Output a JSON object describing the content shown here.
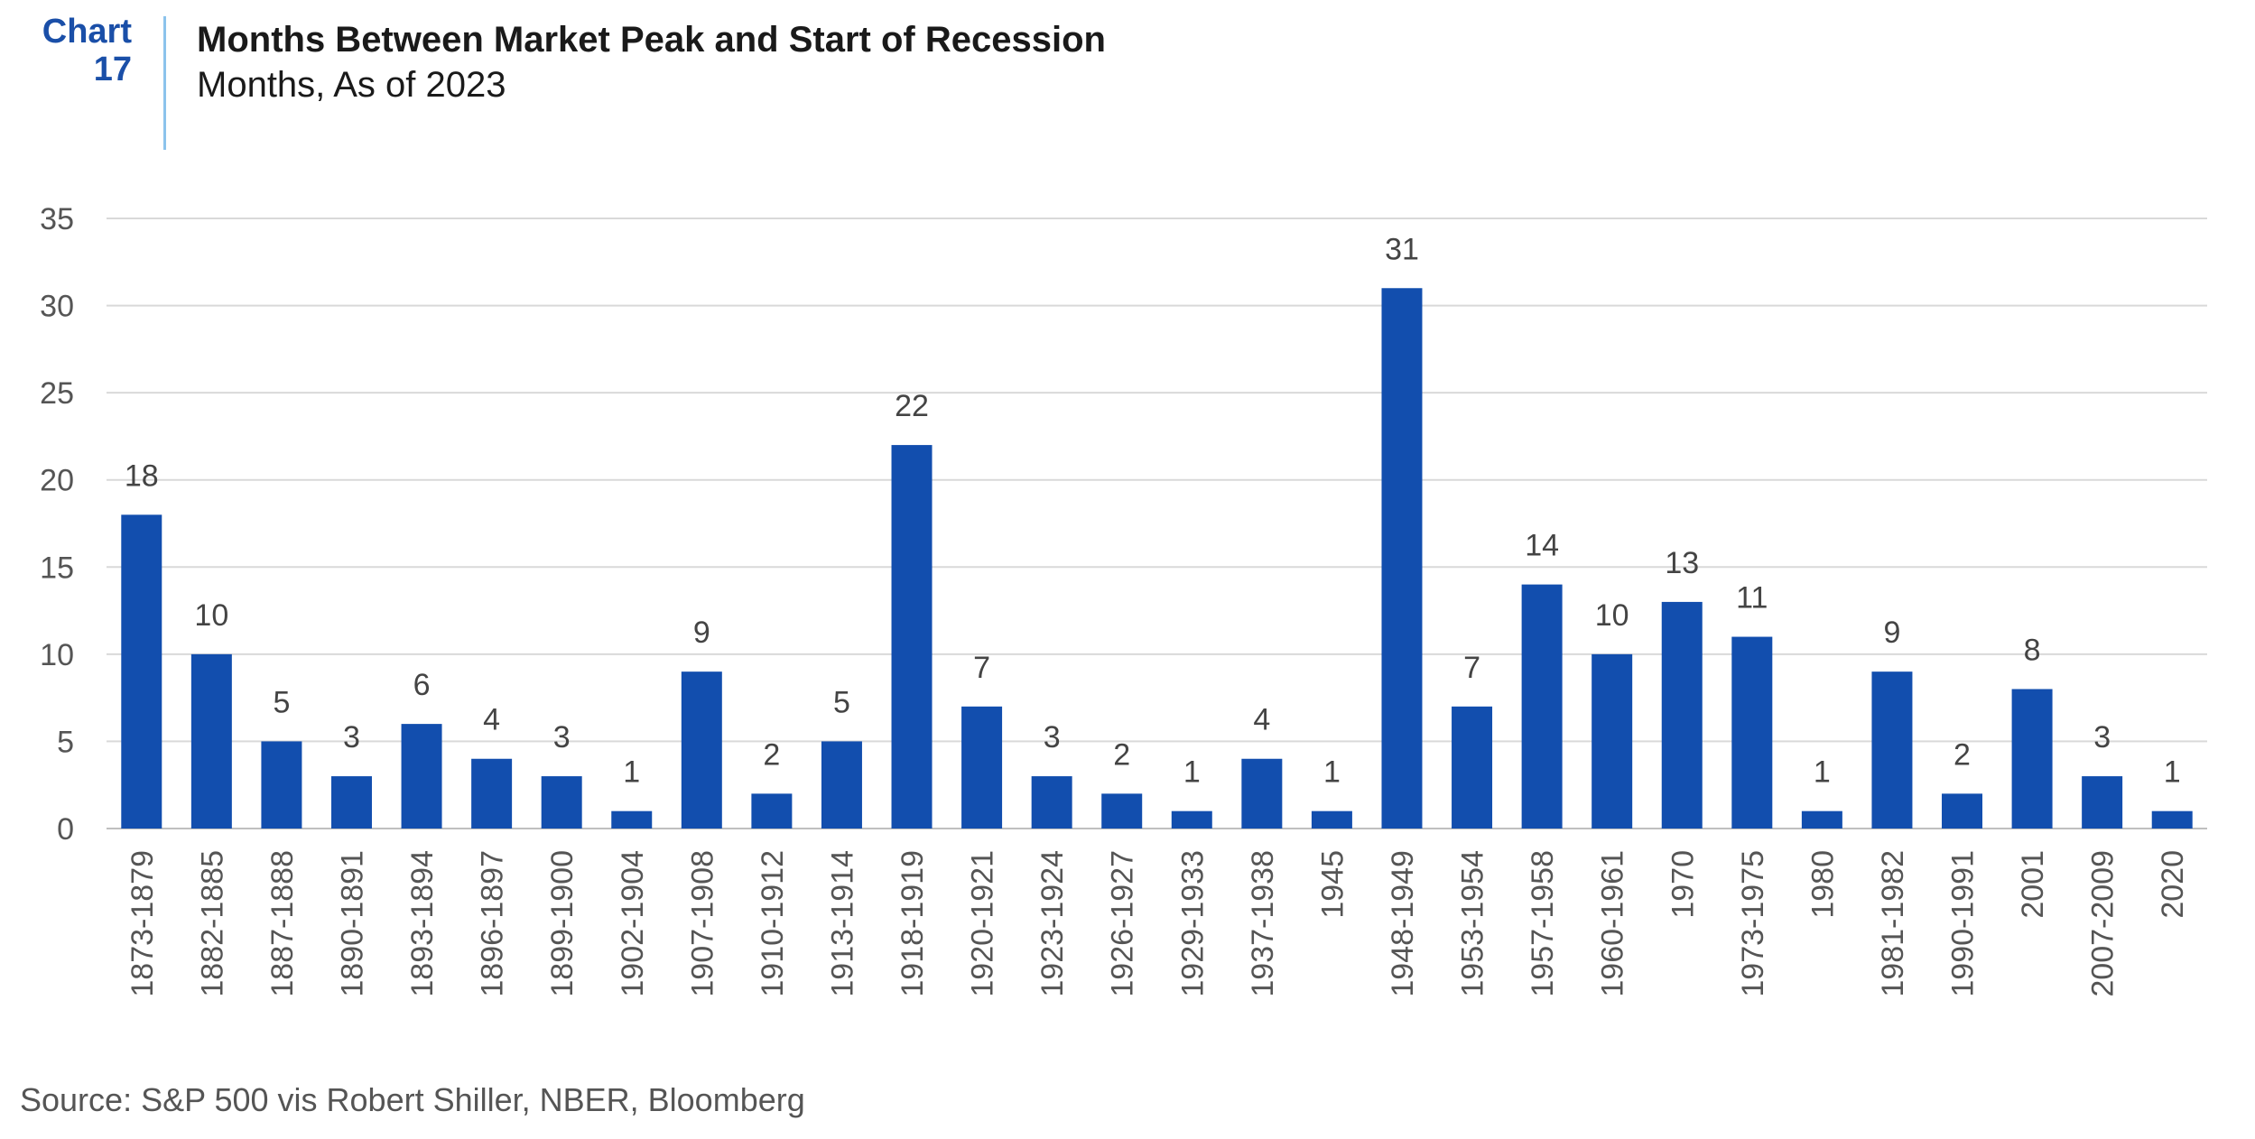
{
  "header": {
    "chart_word": "Chart",
    "chart_number": "17",
    "title": "Months Between Market Peak and Start of Recession",
    "subtitle": "Months, As of 2023"
  },
  "source": "Source: S&P 500 vis Robert Shiller, NBER, Bloomberg",
  "colors": {
    "bar": "#124eae",
    "grid": "#d9d9d9",
    "accent": "#1a4fa8"
  },
  "chart_data": {
    "type": "bar",
    "title": "Months Between Market Peak and Start of Recession",
    "subtitle": "Months, As of 2023",
    "categories": [
      "1873-1879",
      "1882-1885",
      "1887-1888",
      "1890-1891",
      "1893-1894",
      "1896-1897",
      "1899-1900",
      "1902-1904",
      "1907-1908",
      "1910-1912",
      "1913-1914",
      "1918-1919",
      "1920-1921",
      "1923-1924",
      "1926-1927",
      "1929-1933",
      "1937-1938",
      "1945",
      "1948-1949",
      "1953-1954",
      "1957-1958",
      "1960-1961",
      "1970",
      "1973-1975",
      "1980",
      "1981-1982",
      "1990-1991",
      "2001",
      "2007-2009",
      "2020"
    ],
    "values": [
      18,
      10,
      5,
      3,
      6,
      4,
      3,
      1,
      9,
      2,
      5,
      22,
      7,
      3,
      2,
      1,
      4,
      1,
      31,
      7,
      14,
      10,
      13,
      11,
      1,
      9,
      2,
      8,
      3,
      1
    ],
    "ylim": [
      0,
      35
    ],
    "yticks": [
      0,
      5,
      10,
      15,
      20,
      25,
      30,
      35
    ],
    "grid": true,
    "data_labels": true
  }
}
